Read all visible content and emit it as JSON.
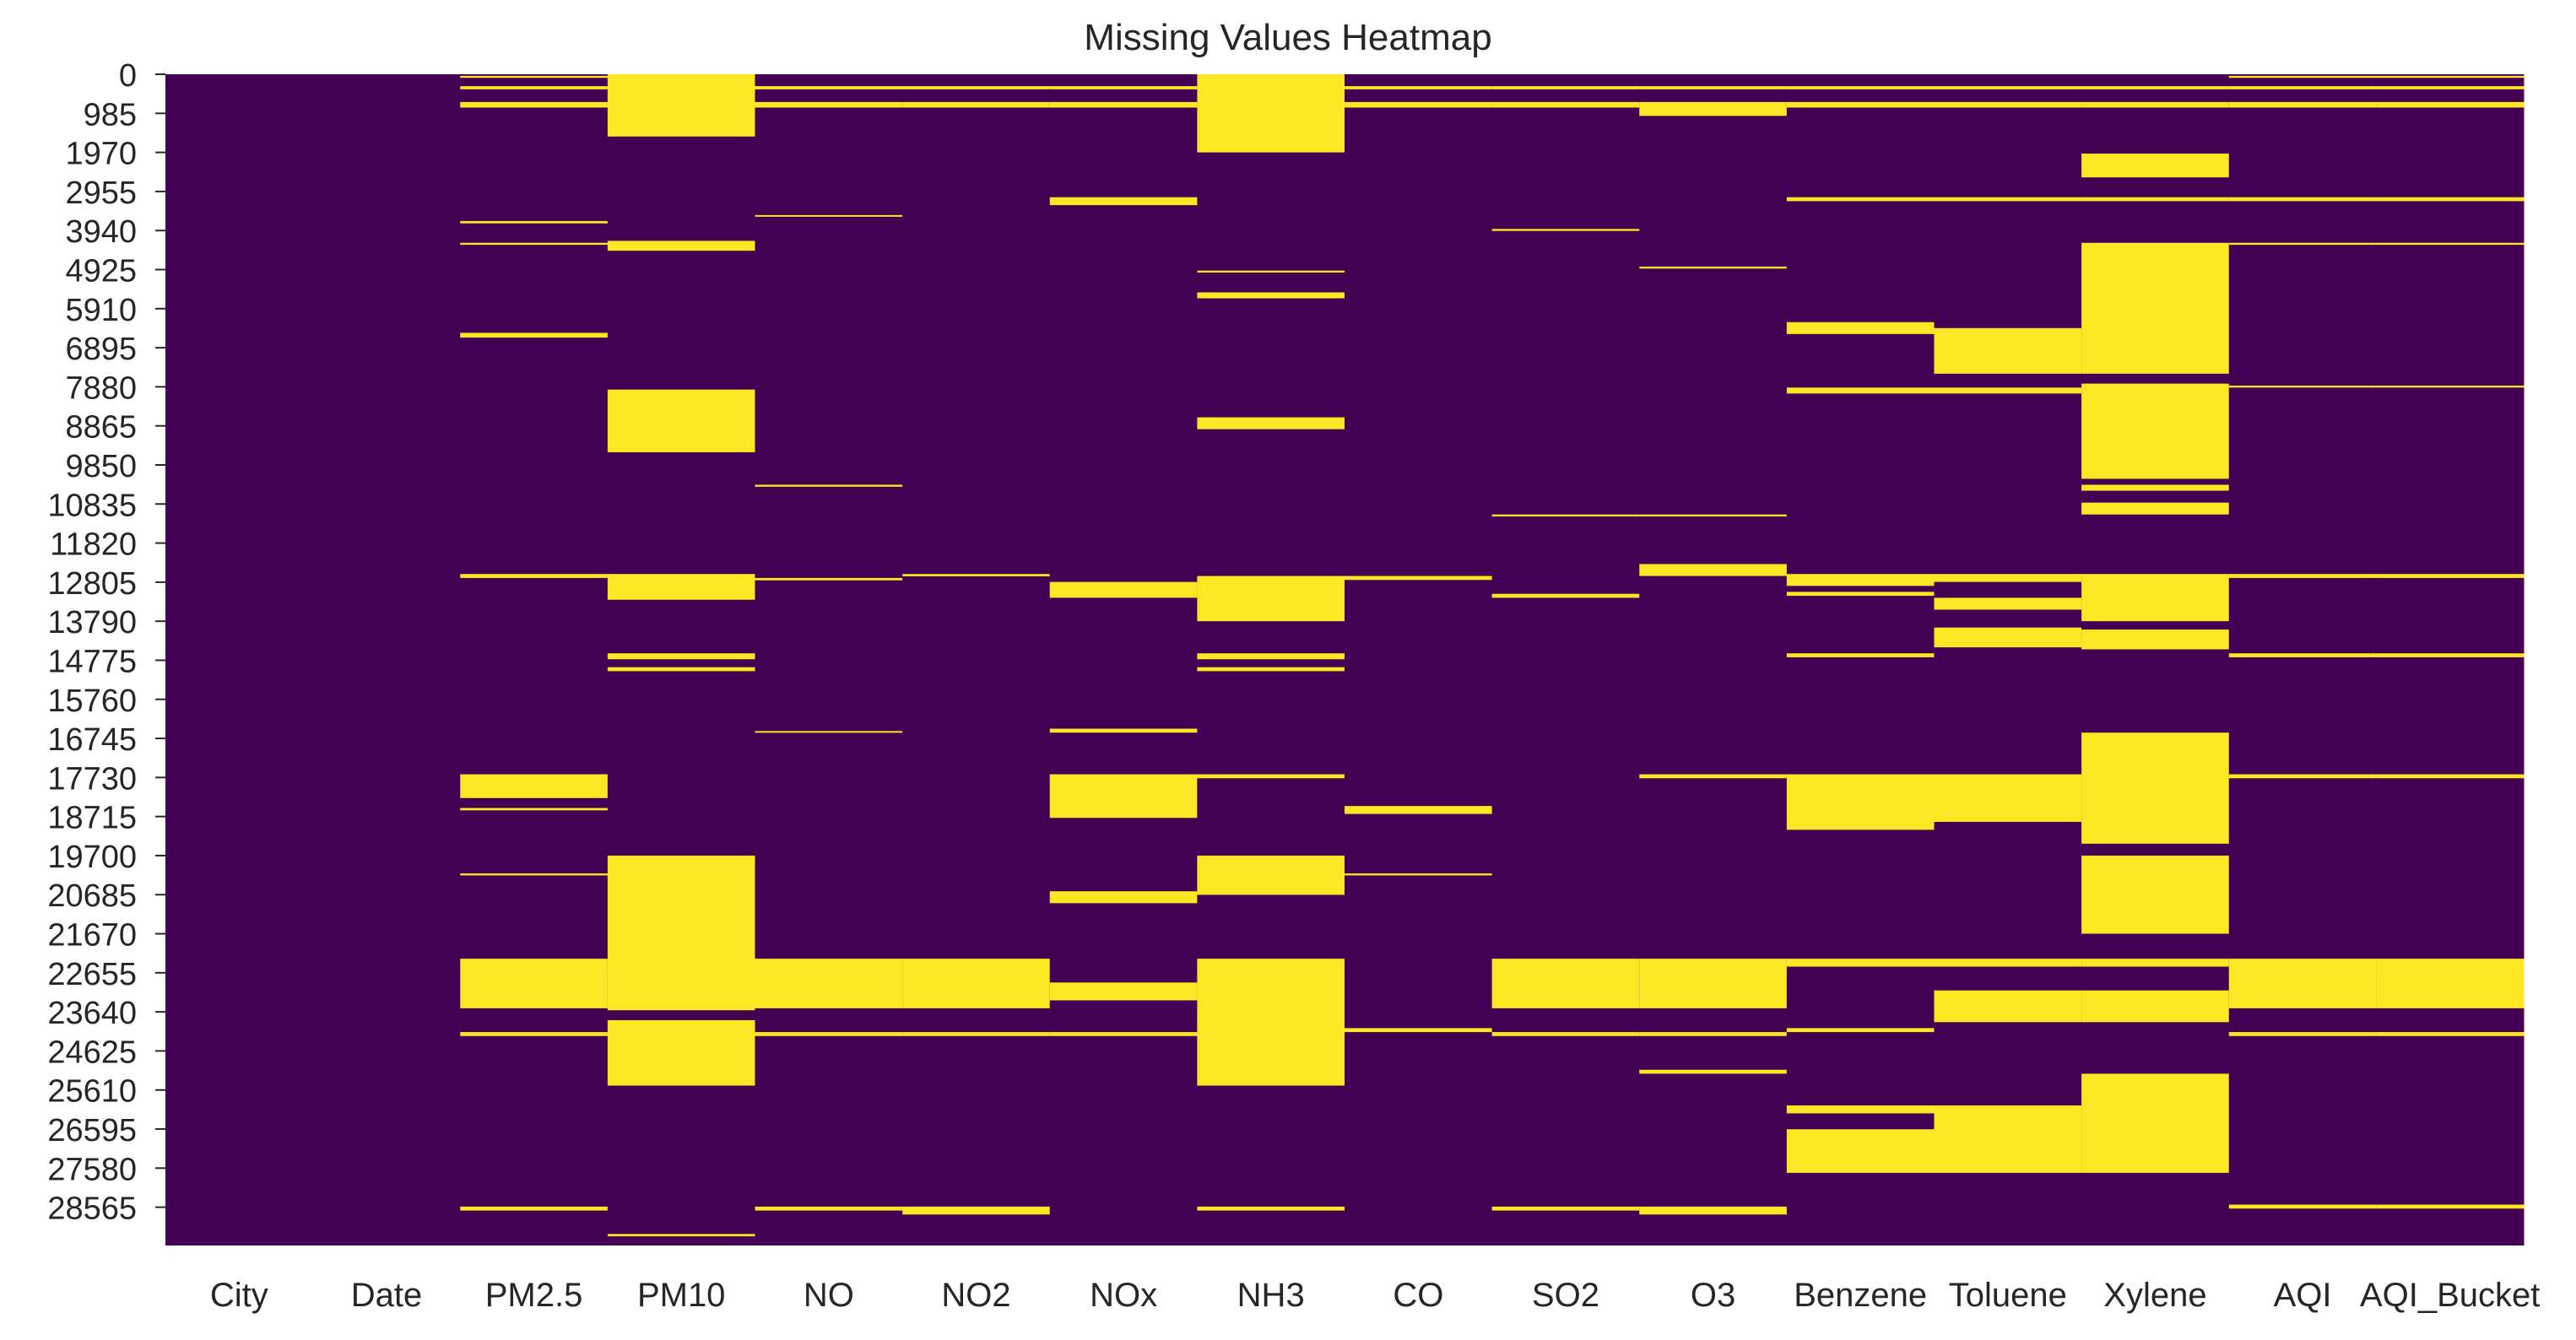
{
  "chart_data": {
    "type": "heatmap",
    "title": "Missing Values Heatmap",
    "xlabel": "",
    "ylabel": "",
    "columns": [
      "City",
      "Date",
      "PM2.5",
      "PM10",
      "NO",
      "NO2",
      "NOx",
      "NH3",
      "CO",
      "SO2",
      "O3",
      "Benzene",
      "Toluene",
      "Xylene",
      "AQI",
      "AQI_Bucket"
    ],
    "row_tick_labels": [
      "0",
      "985",
      "1970",
      "2955",
      "3940",
      "4925",
      "5910",
      "6895",
      "7880",
      "8865",
      "9850",
      "10835",
      "11820",
      "12805",
      "13790",
      "14775",
      "15760",
      "16745",
      "17730",
      "18715",
      "19700",
      "20685",
      "21670",
      "22655",
      "23640",
      "24625",
      "25610",
      "26595",
      "27580",
      "28565"
    ],
    "row_range": [
      0,
      29531
    ],
    "value_meaning": {
      "0": "present",
      "1": "missing"
    },
    "colors": {
      "present": "#440154",
      "missing": "#fde725"
    },
    "grid": false,
    "missing_blocks": {
      "City": [],
      "Date": [],
      "PM2.5": [
        [
          40,
          90
        ],
        [
          300,
          380
        ],
        [
          700,
          840
        ],
        [
          3700,
          3760
        ],
        [
          4250,
          4300
        ],
        [
          6520,
          6640
        ],
        [
          12600,
          12700
        ],
        [
          17650,
          18250
        ],
        [
          18500,
          18560
        ],
        [
          20150,
          20200
        ],
        [
          22300,
          23550
        ],
        [
          24150,
          24250
        ],
        [
          28550,
          28650
        ]
      ],
      "PM10": [
        [
          0,
          1570
        ],
        [
          4200,
          4450
        ],
        [
          7950,
          9530
        ],
        [
          12600,
          13250
        ],
        [
          14600,
          14750
        ],
        [
          14950,
          15050
        ],
        [
          19700,
          23600
        ],
        [
          23850,
          25500
        ],
        [
          29240,
          29300
        ]
      ],
      "NO": [
        [
          300,
          380
        ],
        [
          700,
          840
        ],
        [
          3550,
          3580
        ],
        [
          10350,
          10400
        ],
        [
          12700,
          12760
        ],
        [
          16560,
          16600
        ],
        [
          22300,
          23550
        ],
        [
          24150,
          24250
        ],
        [
          28550,
          28650
        ]
      ],
      "NO2": [
        [
          300,
          380
        ],
        [
          700,
          840
        ],
        [
          12600,
          12660
        ],
        [
          22300,
          23550
        ],
        [
          24150,
          24250
        ],
        [
          28550,
          28750
        ]
      ],
      "NOx": [
        [
          300,
          380
        ],
        [
          700,
          840
        ],
        [
          3100,
          3300
        ],
        [
          12800,
          13200
        ],
        [
          16500,
          16600
        ],
        [
          17650,
          18750
        ],
        [
          20600,
          20900
        ],
        [
          22900,
          23350
        ],
        [
          24150,
          24250
        ]
      ],
      "NH3": [
        [
          0,
          1970
        ],
        [
          4950,
          5000
        ],
        [
          5500,
          5650
        ],
        [
          8650,
          8950
        ],
        [
          12650,
          13790
        ],
        [
          14600,
          14750
        ],
        [
          14950,
          15050
        ],
        [
          17650,
          17750
        ],
        [
          19700,
          20690
        ],
        [
          22300,
          23900
        ],
        [
          23850,
          25500
        ],
        [
          28550,
          28650
        ]
      ],
      "CO": [
        [
          300,
          380
        ],
        [
          700,
          840
        ],
        [
          12650,
          12750
        ],
        [
          18450,
          18650
        ],
        [
          20150,
          20200
        ],
        [
          24050,
          24150
        ]
      ],
      "SO2": [
        [
          300,
          380
        ],
        [
          700,
          840
        ],
        [
          3900,
          3950
        ],
        [
          11100,
          11150
        ],
        [
          13100,
          13200
        ],
        [
          22300,
          23550
        ],
        [
          24150,
          24250
        ],
        [
          28550,
          28650
        ]
      ],
      "O3": [
        [
          300,
          380
        ],
        [
          700,
          1050
        ],
        [
          4850,
          4900
        ],
        [
          11100,
          11150
        ],
        [
          12350,
          12650
        ],
        [
          17650,
          17750
        ],
        [
          22300,
          23550
        ],
        [
          24150,
          24250
        ],
        [
          25100,
          25200
        ],
        [
          28550,
          28750
        ]
      ],
      "Benzene": [
        [
          300,
          380
        ],
        [
          700,
          840
        ],
        [
          3100,
          3200
        ],
        [
          6250,
          6550
        ],
        [
          7900,
          8050
        ],
        [
          12600,
          12900
        ],
        [
          13050,
          13150
        ],
        [
          14600,
          14700
        ],
        [
          17650,
          19050
        ],
        [
          22300,
          22500
        ],
        [
          24050,
          24150
        ],
        [
          26000,
          26200
        ],
        [
          26600,
          27700
        ]
      ],
      "Toluene": [
        [
          300,
          380
        ],
        [
          700,
          840
        ],
        [
          3100,
          3200
        ],
        [
          6400,
          7550
        ],
        [
          7900,
          8050
        ],
        [
          12600,
          12800
        ],
        [
          13200,
          13500
        ],
        [
          13950,
          14450
        ],
        [
          17650,
          18850
        ],
        [
          22300,
          22500
        ],
        [
          23100,
          23900
        ],
        [
          26000,
          27700
        ]
      ],
      "Xylene": [
        [
          300,
          380
        ],
        [
          700,
          840
        ],
        [
          2000,
          2600
        ],
        [
          3100,
          3200
        ],
        [
          4250,
          7550
        ],
        [
          7800,
          10200
        ],
        [
          10350,
          10500
        ],
        [
          10800,
          11100
        ],
        [
          12600,
          13790
        ],
        [
          14000,
          14500
        ],
        [
          16600,
          19400
        ],
        [
          19700,
          21670
        ],
        [
          22300,
          22500
        ],
        [
          23100,
          23900
        ],
        [
          25200,
          27700
        ]
      ],
      "AQI": [
        [
          40,
          90
        ],
        [
          300,
          380
        ],
        [
          700,
          840
        ],
        [
          3100,
          3200
        ],
        [
          4250,
          4300
        ],
        [
          7850,
          7900
        ],
        [
          12600,
          12700
        ],
        [
          14600,
          14700
        ],
        [
          17650,
          17750
        ],
        [
          22300,
          23550
        ],
        [
          24150,
          24250
        ],
        [
          28500,
          28600
        ]
      ],
      "AQI_Bucket": [
        [
          40,
          90
        ],
        [
          300,
          380
        ],
        [
          700,
          840
        ],
        [
          3100,
          3200
        ],
        [
          4250,
          4300
        ],
        [
          7850,
          7900
        ],
        [
          12600,
          12700
        ],
        [
          14600,
          14700
        ],
        [
          17650,
          17750
        ],
        [
          22300,
          23550
        ],
        [
          24150,
          24250
        ],
        [
          28500,
          28600
        ]
      ]
    }
  }
}
